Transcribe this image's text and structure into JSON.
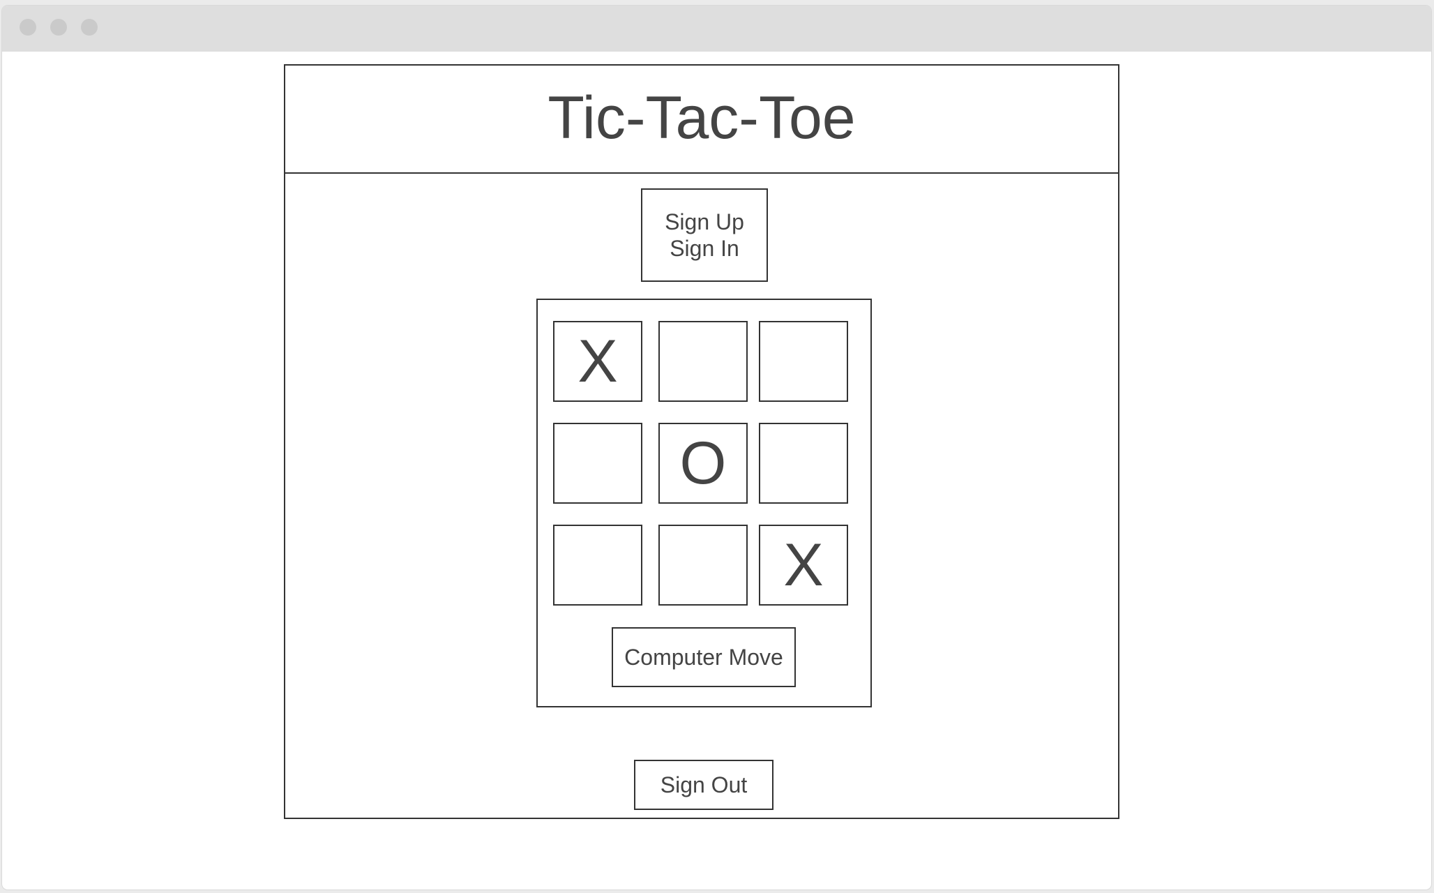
{
  "header": {
    "title": "Tic-Tac-Toe"
  },
  "auth": {
    "sign_up_label": "Sign Up",
    "sign_in_label": "Sign In"
  },
  "board": {
    "cells": [
      "X",
      "",
      "",
      "",
      "O",
      "",
      "",
      "",
      "X"
    ]
  },
  "controls": {
    "computer_move_label": "Computer Move",
    "sign_out_label": "Sign Out"
  }
}
